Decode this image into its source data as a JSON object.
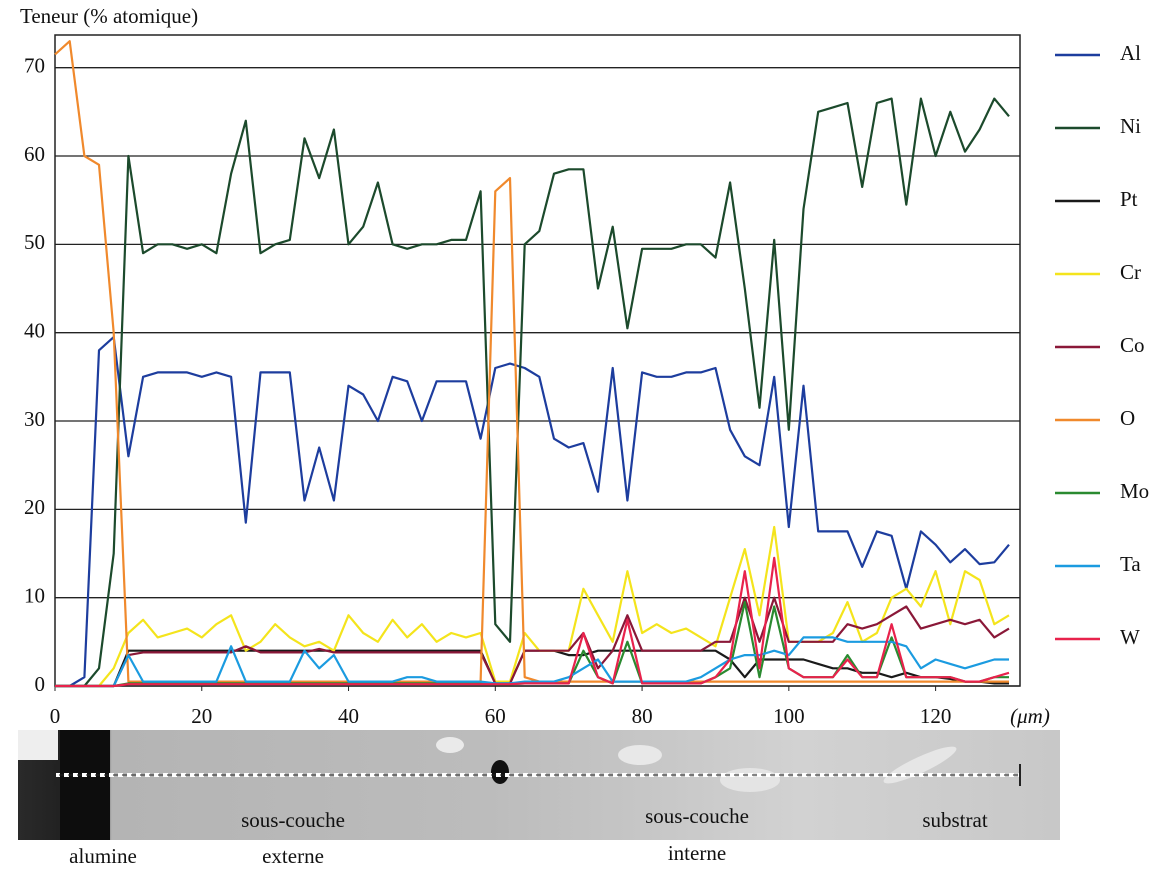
{
  "chart_data": {
    "type": "line",
    "ylabel": "Teneur (% atomique)",
    "xlabel": "(μm)",
    "x": [
      0,
      2,
      4,
      6,
      8,
      10,
      12,
      14,
      16,
      18,
      20,
      22,
      24,
      26,
      28,
      30,
      32,
      34,
      36,
      38,
      40,
      42,
      44,
      46,
      48,
      50,
      52,
      54,
      56,
      58,
      60,
      62,
      64,
      66,
      68,
      70,
      72,
      74,
      76,
      78,
      80,
      82,
      84,
      86,
      88,
      90,
      92,
      94,
      96,
      98,
      100,
      102,
      104,
      106,
      108,
      110,
      112,
      114,
      116,
      118,
      120,
      122,
      124,
      126,
      128,
      130
    ],
    "xlim": [
      0,
      131.5
    ],
    "xticks": [
      0,
      20,
      40,
      60,
      80,
      100,
      120
    ],
    "ylim": [
      0,
      73.7
    ],
    "yticks": [
      0,
      10,
      20,
      30,
      40,
      50,
      60,
      70
    ],
    "grid": true,
    "series": [
      {
        "name": "Al",
        "color": "#1d3d9e",
        "values": [
          0,
          0,
          1,
          38,
          39.5,
          26,
          35,
          35.5,
          35.5,
          35.5,
          35,
          35.5,
          35,
          18.5,
          35.5,
          35.5,
          35.5,
          21,
          27,
          21,
          34,
          33,
          30,
          35,
          34.5,
          30,
          34.5,
          34.5,
          34.5,
          28,
          36,
          36.5,
          36,
          35,
          28,
          27,
          27.5,
          22,
          36,
          21,
          35.5,
          35,
          35,
          35.5,
          35.5,
          36,
          29,
          26,
          25,
          35,
          18,
          34,
          17.5,
          17.5,
          17.5,
          13.5,
          17.5,
          17,
          11,
          17.5,
          16,
          14,
          15.5,
          13.8,
          14,
          16
        ]
      },
      {
        "name": "Ni",
        "color": "#1c4a2c",
        "values": [
          0,
          0,
          0,
          2,
          15,
          60,
          49,
          50,
          50,
          49.5,
          50,
          49,
          58,
          64,
          49,
          50,
          50.5,
          62,
          57.5,
          63,
          50,
          52,
          57,
          50,
          49.5,
          50,
          50,
          50.5,
          50.5,
          56,
          7,
          5,
          50,
          51.5,
          58,
          58.5,
          58.5,
          45,
          52,
          40.5,
          49.5,
          49.5,
          49.5,
          50,
          50,
          48.5,
          57,
          45,
          31.5,
          50.5,
          29,
          54,
          65,
          65.5,
          66,
          56.5,
          66,
          66.5,
          54.5,
          66.5,
          60,
          65,
          60.5,
          63,
          66.5,
          64.5
        ]
      },
      {
        "name": "Pt",
        "color": "#1a1a1a",
        "values": [
          0,
          0,
          0,
          0,
          0,
          4,
          4,
          4,
          4,
          4,
          4,
          4,
          4,
          4,
          4,
          4,
          4,
          4,
          4,
          4,
          4,
          4,
          4,
          4,
          4,
          4,
          4,
          4,
          4,
          4,
          0.3,
          0.3,
          4,
          4,
          4,
          3.5,
          3.5,
          4,
          4,
          4,
          4,
          4,
          4,
          4,
          4,
          4,
          3,
          1,
          3,
          3,
          3,
          3,
          2.5,
          2,
          2,
          1.5,
          1.5,
          1,
          1.5,
          1,
          1,
          0.8,
          0.5,
          0.5,
          0.3,
          0.3
        ]
      },
      {
        "name": "Cr",
        "color": "#f4e41c",
        "values": [
          0,
          0,
          0,
          0,
          2,
          6,
          7.5,
          5.5,
          6,
          6.5,
          5.5,
          7,
          8,
          4,
          5,
          7,
          5.5,
          4.5,
          5,
          4,
          8,
          6,
          5,
          7.5,
          5.5,
          7,
          5,
          6,
          5.5,
          6,
          0.5,
          0.5,
          6,
          4,
          4,
          4,
          11,
          8,
          5,
          13,
          6,
          7,
          6,
          6.5,
          5.5,
          4.5,
          10,
          15.5,
          8,
          18,
          5,
          5,
          5,
          6,
          9.5,
          5,
          6,
          10,
          11,
          9,
          13,
          7,
          13,
          12,
          7,
          8
        ]
      },
      {
        "name": "Co",
        "color": "#8a1838",
        "values": [
          0,
          0,
          0,
          0,
          0,
          3.5,
          3.8,
          3.8,
          3.8,
          3.8,
          3.8,
          3.8,
          3.8,
          4.5,
          3.8,
          3.8,
          3.8,
          3.8,
          4.2,
          3.8,
          3.8,
          3.8,
          3.8,
          3.8,
          3.8,
          3.8,
          3.8,
          3.8,
          3.8,
          3.8,
          0.3,
          0.3,
          4,
          4,
          4,
          4,
          6,
          2,
          4,
          8,
          4,
          4,
          4,
          4,
          4,
          5,
          5,
          10,
          5,
          10,
          5,
          5,
          5,
          5,
          7,
          6.5,
          7,
          8,
          9,
          6.5,
          7,
          7.5,
          7,
          7.5,
          5.5,
          6.5
        ]
      },
      {
        "name": "O",
        "color": "#f0892c",
        "values": [
          71.5,
          73,
          60,
          59,
          40,
          0.5,
          0.5,
          0.5,
          0.5,
          0.5,
          0.5,
          0.5,
          0.5,
          0.5,
          0.5,
          0.5,
          0.5,
          0.5,
          0.5,
          0.5,
          0.5,
          0.5,
          0.5,
          0.5,
          0.5,
          0.5,
          0.5,
          0.5,
          0.5,
          0.5,
          56,
          57.5,
          1,
          0.5,
          0.5,
          0.5,
          0.5,
          0.5,
          0.5,
          0.5,
          0.5,
          0.5,
          0.5,
          0.5,
          0.5,
          0.5,
          0.5,
          0.5,
          0.5,
          0.5,
          0.5,
          0.5,
          0.5,
          0.5,
          0.5,
          0.5,
          0.5,
          0.5,
          0.5,
          0.5,
          0.5,
          0.5,
          0.5,
          0.5,
          0.5,
          0.5
        ]
      },
      {
        "name": "Mo",
        "color": "#2a8a30",
        "values": [
          0,
          0,
          0,
          0,
          0,
          0.3,
          0.3,
          0.3,
          0.3,
          0.3,
          0.3,
          0.3,
          0.3,
          0.3,
          0.3,
          0.3,
          0.3,
          0.3,
          0.3,
          0.3,
          0.3,
          0.3,
          0.3,
          0.3,
          0.3,
          0.3,
          0.3,
          0.3,
          0.3,
          0.3,
          0.2,
          0.2,
          0.3,
          0.3,
          0.3,
          0.3,
          4,
          1,
          0.3,
          5,
          0.3,
          0.3,
          0.3,
          0.3,
          0.3,
          1,
          2,
          9.5,
          1,
          9,
          2,
          1,
          1,
          1,
          3.5,
          1,
          1,
          5.5,
          1,
          1,
          1,
          1,
          0.5,
          0.5,
          1,
          1
        ]
      },
      {
        "name": "Ta",
        "color": "#1b9be0",
        "values": [
          0,
          0,
          0,
          0,
          0,
          3.5,
          0.5,
          0.5,
          0.5,
          0.5,
          0.5,
          0.5,
          4.5,
          0.5,
          0.5,
          0.5,
          0.5,
          4,
          2,
          3.5,
          0.5,
          0.5,
          0.5,
          0.5,
          1,
          1,
          0.5,
          0.5,
          0.5,
          0.5,
          0.3,
          0.3,
          0.5,
          0.5,
          0.5,
          1,
          2,
          3,
          0.5,
          0.5,
          0.5,
          0.5,
          0.5,
          0.5,
          1,
          2,
          3,
          3.5,
          3.5,
          4,
          3.5,
          5.5,
          5.5,
          5.5,
          5,
          5,
          5,
          5,
          4.5,
          2,
          3,
          2.5,
          2,
          2.5,
          3,
          3
        ]
      },
      {
        "name": "W",
        "color": "#e8224c",
        "values": [
          0,
          0,
          0,
          0,
          0,
          0.2,
          0.2,
          0.2,
          0.2,
          0.2,
          0.2,
          0.2,
          0.2,
          0.2,
          0.2,
          0.2,
          0.2,
          0.2,
          0.2,
          0.2,
          0.2,
          0.2,
          0.2,
          0.2,
          0.2,
          0.2,
          0.2,
          0.2,
          0.2,
          0.2,
          0.2,
          0.2,
          0.3,
          0.3,
          0.3,
          0.3,
          6,
          1,
          0.3,
          7.5,
          0.3,
          0.3,
          0.3,
          0.3,
          0.3,
          1,
          3,
          13,
          2,
          14.5,
          2,
          1,
          1,
          1,
          3,
          1,
          1,
          7,
          1,
          1,
          1,
          1,
          0.5,
          0.5,
          1,
          1.5
        ]
      }
    ],
    "annotations": [
      "alumine",
      "sous-couche",
      "externe",
      "sous-couche",
      "interne",
      "substrat"
    ]
  }
}
